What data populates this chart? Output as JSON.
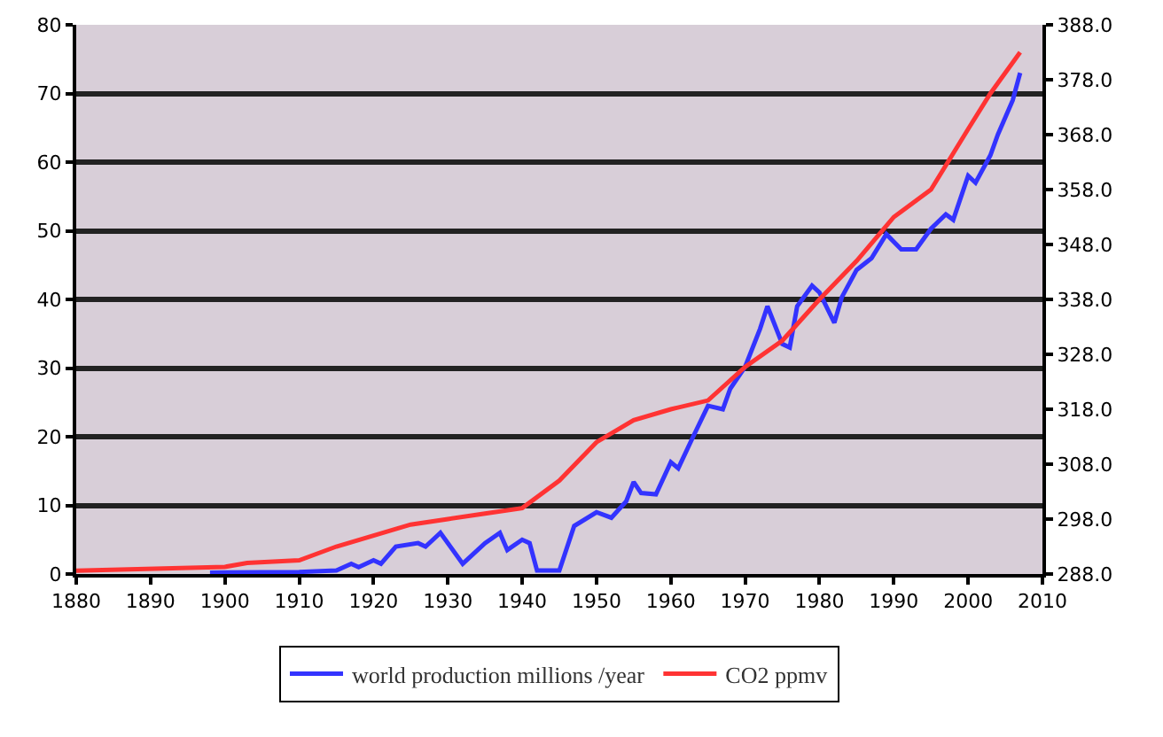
{
  "chart_data": {
    "type": "line",
    "xlim": [
      1880,
      2010
    ],
    "xticks": [
      1880,
      1890,
      1900,
      1910,
      1920,
      1930,
      1940,
      1950,
      1960,
      1970,
      1980,
      1990,
      2000,
      2010
    ],
    "ylim": [
      0,
      80
    ],
    "yticks": [
      0,
      10,
      20,
      30,
      40,
      50,
      60,
      70,
      80
    ],
    "y2lim": [
      288,
      388
    ],
    "y2ticks": [
      {
        "value": 288,
        "label": "288.0"
      },
      {
        "value": 298,
        "label": "298.0"
      },
      {
        "value": 308,
        "label": "308.0"
      },
      {
        "value": 318,
        "label": "318.0"
      },
      {
        "value": 328,
        "label": "328.0"
      },
      {
        "value": 338,
        "label": "338.0"
      },
      {
        "value": 348,
        "label": "348.0"
      },
      {
        "value": 358,
        "label": "358.0"
      },
      {
        "value": 368,
        "label": "368.0"
      },
      {
        "value": 378,
        "label": "378.0"
      },
      {
        "value": 388,
        "label": "388.0"
      }
    ],
    "grid": "y",
    "legend": "bottom",
    "marker": "none",
    "line_style": "solid",
    "series": [
      {
        "name": "world production millions /year",
        "color": "#3333ff",
        "x": [
          1898,
          1910,
          1915,
          1917,
          1918,
          1920,
          1921,
          1923,
          1926,
          1927,
          1929,
          1932,
          1935,
          1937,
          1938,
          1940,
          1941,
          1942,
          1945,
          1947,
          1950,
          1952,
          1954,
          1955,
          1956,
          1958,
          1960,
          1961,
          1963,
          1965,
          1967,
          1968,
          1970,
          1972,
          1973,
          1975,
          1976,
          1977,
          1979,
          1980,
          1982,
          1983,
          1985,
          1987,
          1989,
          1991,
          1993,
          1995,
          1997,
          1998,
          2000,
          2001,
          2003,
          2004,
          2006,
          2007
        ],
        "values": [
          0.2,
          0.3,
          0.5,
          1.5,
          1,
          2,
          1.5,
          4,
          4.5,
          4,
          6,
          1.5,
          4.5,
          6,
          3.5,
          5,
          4.5,
          0.5,
          0.5,
          7,
          9,
          8.2,
          10.6,
          13.4,
          11.8,
          11.6,
          16.3,
          15.4,
          20,
          24.5,
          24,
          27,
          30.2,
          35.7,
          39,
          33.5,
          33,
          39,
          42,
          41,
          36.6,
          40.3,
          44.3,
          46,
          49.5,
          47.3,
          47.3,
          50.3,
          52.4,
          51.6,
          58,
          57,
          61,
          64,
          69,
          73
        ]
      },
      {
        "name": "CO2 ppmv",
        "color": "#ff3333",
        "axis": "y2",
        "x": [
          1880,
          1900,
          1903,
          1910,
          1915,
          1920,
          1925,
          1930,
          1935,
          1940,
          1945,
          1950,
          1955,
          1960,
          1965,
          1970,
          1975,
          1980,
          1985,
          1990,
          1995,
          2000,
          2003,
          2007
        ],
        "values": [
          288.6,
          289.3,
          290,
          290.5,
          293,
          295,
          297,
          298,
          299,
          300,
          305,
          312,
          316,
          318,
          319.6,
          325.7,
          330.5,
          338,
          345,
          353,
          358,
          369,
          375.5,
          383
        ]
      }
    ]
  }
}
